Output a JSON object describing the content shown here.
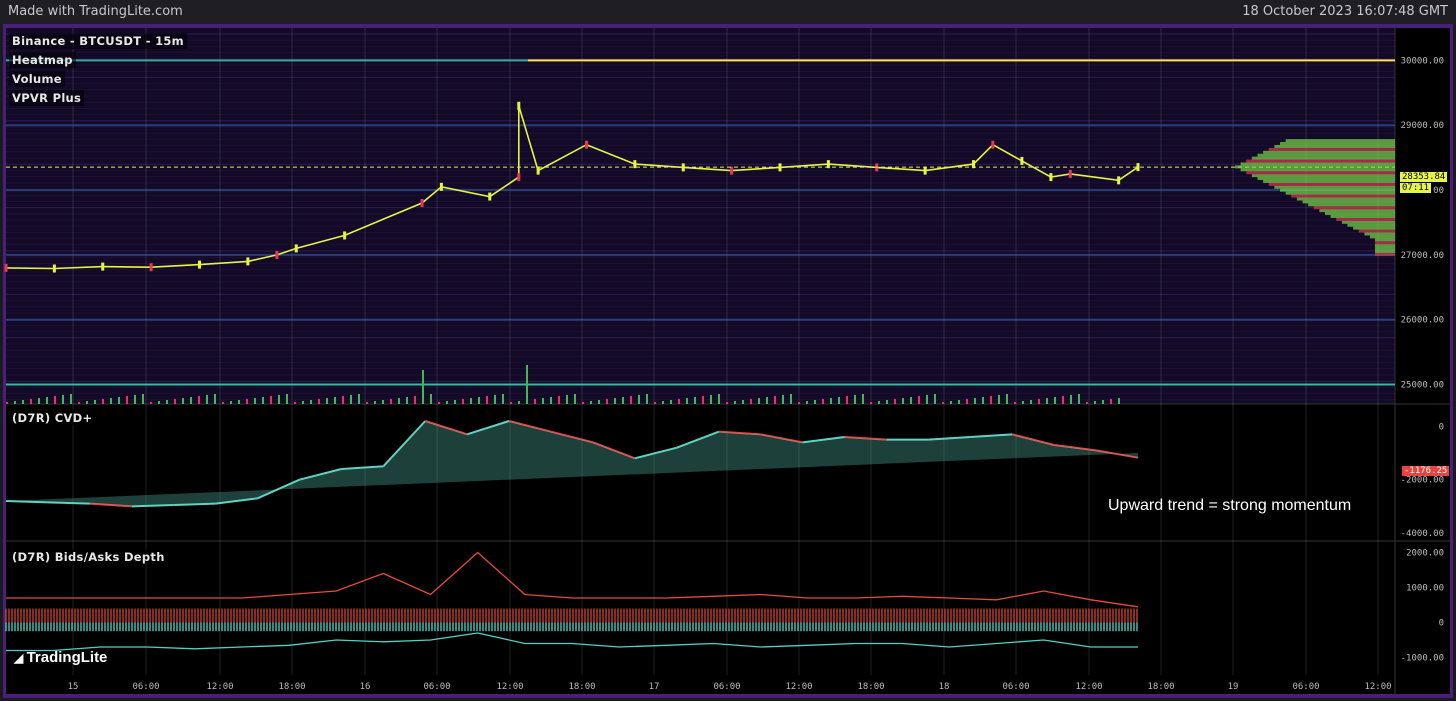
{
  "header": {
    "made_with": "Made with TradingLite.com",
    "timestamp": "18 October 2023 16:07:48 GMT"
  },
  "panes": {
    "main": {
      "labels": [
        "Binance - BTCUSDT - 15m",
        "Heatmap",
        "Volume",
        "VPVR Plus"
      ]
    },
    "cvd": {
      "label": "(D7R) CVD+",
      "annotation": "Upward trend = strong momentum",
      "current_value": "-1176.25"
    },
    "depth": {
      "label": "(D7R) Bids/Asks Depth"
    }
  },
  "brand": "TradingLite",
  "price_tag": {
    "price": "28353.84",
    "countdown": "07:11"
  },
  "colors": {
    "bull": "#e6f542",
    "bear": "#e8365a",
    "cvd_up": "#5fd3c0",
    "cvd_down": "#e8433f",
    "bids": "#4fd1c5",
    "asks": "#e84a3a",
    "frame": "#4a1f7a",
    "heatmap_bg": "#120a26"
  },
  "chart_data": [
    {
      "type": "line",
      "title": "Binance - BTCUSDT - 15m",
      "y_ticks": [
        "30000.00",
        "29000.00",
        "28000.00",
        "27000.00",
        "26000.00",
        "25000.00"
      ],
      "ylim": [
        24700,
        30500
      ],
      "series": [
        {
          "name": "BTCUSDT",
          "x": [
            0,
            0.05,
            0.1,
            0.15,
            0.2,
            0.25,
            0.28,
            0.3,
            0.35,
            0.43,
            0.45,
            0.5,
            0.53,
            0.53,
            0.55,
            0.6,
            0.65,
            0.7,
            0.75,
            0.8,
            0.85,
            0.9,
            0.95,
            1.0,
            1.02,
            1.05,
            1.08,
            1.1,
            1.15,
            1.17
          ],
          "values": [
            26800,
            26790,
            26820,
            26810,
            26850,
            26900,
            27000,
            27100,
            27300,
            27800,
            28050,
            27900,
            28200,
            29300,
            28300,
            28700,
            28400,
            28350,
            28300,
            28350,
            28400,
            28350,
            28300,
            28400,
            28700,
            28450,
            28200,
            28250,
            28150,
            28354
          ]
        }
      ],
      "x_tick_labels": [
        "15",
        "06:00",
        "12:00",
        "18:00",
        "16",
        "06:00",
        "12:00",
        "18:00",
        "17",
        "06:00",
        "12:00",
        "18:00",
        "18",
        "06:00",
        "12:00",
        "18:00",
        "19",
        "06:00",
        "12:00"
      ]
    },
    {
      "type": "area",
      "title": "(D7R) CVD+",
      "y_ticks": [
        "0",
        "-2000.00",
        "-4000.00"
      ],
      "ylim": [
        -4300,
        800
      ],
      "series": [
        {
          "name": "CVD",
          "values": [
            -2800,
            -2850,
            -2900,
            -3000,
            -2950,
            -2900,
            -2700,
            -2000,
            -1600,
            -1500,
            200,
            -300,
            200,
            -200,
            -600,
            -1200,
            -800,
            -200,
            -300,
            -600,
            -400,
            -500,
            -500,
            -400,
            -300,
            -700,
            -900,
            -1176
          ]
        }
      ]
    },
    {
      "type": "line",
      "title": "(D7R) Bids/Asks Depth",
      "y_ticks": [
        "2000.00",
        "1000.00",
        "0",
        "-1000.00"
      ],
      "ylim": [
        -1500,
        2300
      ],
      "series": [
        {
          "name": "asks",
          "values": [
            700,
            700,
            700,
            700,
            700,
            700,
            800,
            900,
            1400,
            800,
            2000,
            800,
            700,
            700,
            700,
            750,
            800,
            700,
            700,
            750,
            700,
            650,
            900,
            650,
            450
          ]
        },
        {
          "name": "bids",
          "values": [
            -800,
            -800,
            -700,
            -700,
            -750,
            -700,
            -650,
            -500,
            -550,
            -500,
            -300,
            -600,
            -600,
            -700,
            -650,
            -600,
            -700,
            -650,
            -600,
            -600,
            -700,
            -600,
            -500,
            -700,
            -700
          ]
        }
      ]
    }
  ]
}
